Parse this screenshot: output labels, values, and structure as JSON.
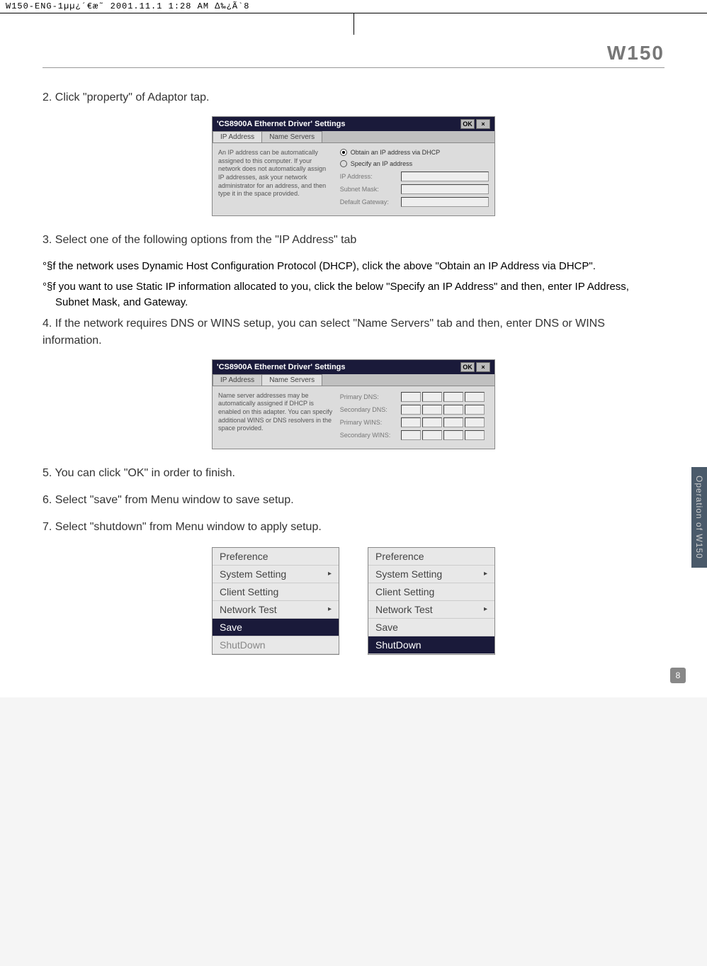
{
  "printHeader": "W150-ENG-1µµ¿´€æ˜  2001.11.1 1:28 AM  ∆‰¿Ã`8",
  "modelBadge": "W150",
  "steps": {
    "s2": "2. Click \"property\" of Adaptor tap.",
    "s3": "3. Select one of the following options from the \"IP Address\" tab",
    "s3a": "°§f the network uses Dynamic Host Configuration Protocol (DHCP), click the above \"Obtain an IP Address via DHCP\".",
    "s3b": "°§f you want to use Static IP information allocated to you, click the below \"Specify an IP Address\" and then, enter IP Address, Subnet Mask, and Gateway.",
    "s4": "4. If the network requires DNS or WINS setup, you can select \"Name Servers\" tab and then, enter DNS or WINS information.",
    "s5": "5. You can click \"OK\" in order to finish.",
    "s6": "6. Select \"save\" from Menu window to save setup.",
    "s7": "7. Select \"shutdown\" from Menu window to apply setup."
  },
  "dialog1": {
    "title": "'CS8900A Ethernet Driver' Settings",
    "okBtn": "OK",
    "closeBtn": "×",
    "tab1": "IP Address",
    "tab2": "Name Servers",
    "leftText": "An IP address can be automatically assigned to this computer. If your network does not automatically assign IP addresses, ask your network administrator for an address, and then type it in the space provided.",
    "radio1": "Obtain an IP address via DHCP",
    "radio2": "Specify an IP address",
    "field1": "IP Address:",
    "field2": "Subnet Mask:",
    "field3": "Default Gateway:"
  },
  "dialog2": {
    "title": "'CS8900A Ethernet Driver' Settings",
    "okBtn": "OK",
    "closeBtn": "×",
    "tab1": "IP Address",
    "tab2": "Name Servers",
    "leftText": "Name server addresses may be automatically assigned if DHCP is enabled on this adapter. You can specify additional WINS or DNS resolvers in the space provided.",
    "field1": "Primary DNS:",
    "field2": "Secondary DNS:",
    "field3": "Primary WINS:",
    "field4": "Secondary WINS:"
  },
  "menu": {
    "preference": "Preference",
    "systemSetting": "System Setting",
    "clientSetting": "Client Setting",
    "networkTest": "Network Test",
    "save": "Save",
    "shutdown": "ShutDown",
    "arrow": "▸"
  },
  "sideTab": "Operation of W150",
  "pageNumber": "8"
}
